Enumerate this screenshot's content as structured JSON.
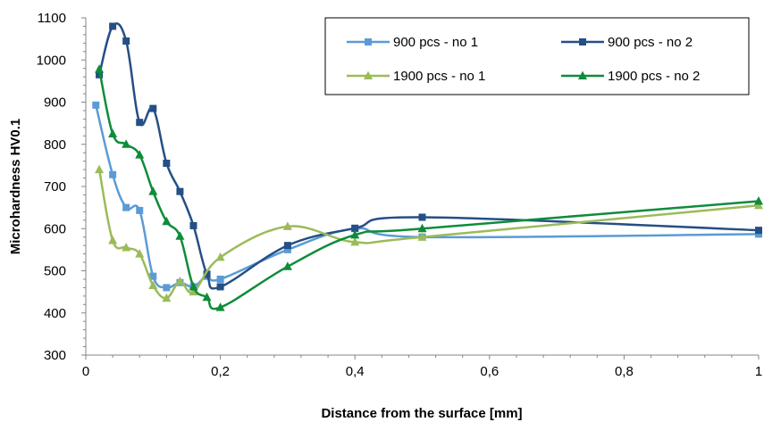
{
  "chart_data": {
    "type": "line",
    "title": "",
    "xlabel": "Distance from the surface [mm]",
    "ylabel": "Microhardness HV0.1",
    "xlim": [
      0,
      1
    ],
    "ylim": [
      300,
      1100
    ],
    "xticks": [
      0,
      0.2,
      0.4,
      0.6,
      0.8,
      1
    ],
    "xtick_labels": [
      "0",
      "0,2",
      "0,4",
      "0,6",
      "0,8",
      "1"
    ],
    "yticks": [
      300,
      400,
      500,
      600,
      700,
      800,
      900,
      1000,
      1100
    ],
    "ytick_labels": [
      "300",
      "400",
      "500",
      "600",
      "700",
      "800",
      "900",
      "1000",
      "1100"
    ],
    "grid": false,
    "legend_position": "top-right",
    "series": [
      {
        "name": "900 pcs - no 1",
        "color": "#5b9bd5",
        "marker": "square",
        "x": [
          0.015,
          0.04,
          0.06,
          0.08,
          0.1,
          0.12,
          0.14,
          0.16,
          0.18,
          0.2,
          0.3,
          0.4,
          0.5,
          1.0
        ],
        "y": [
          893,
          728,
          650,
          643,
          487,
          460,
          472,
          462,
          487,
          480,
          550,
          600,
          580,
          587
        ]
      },
      {
        "name": "900 pcs - no 2",
        "color": "#254f85",
        "marker": "square",
        "x": [
          0.02,
          0.04,
          0.06,
          0.08,
          0.1,
          0.12,
          0.14,
          0.16,
          0.18,
          0.2,
          0.3,
          0.4,
          0.5,
          1.0
        ],
        "y": [
          965,
          1080,
          1045,
          852,
          885,
          755,
          688,
          607,
          492,
          462,
          560,
          601,
          627,
          596
        ]
      },
      {
        "name": "1900 pcs - no 1",
        "color": "#9bbb59",
        "marker": "triangle",
        "x": [
          0.02,
          0.04,
          0.06,
          0.08,
          0.1,
          0.12,
          0.14,
          0.16,
          0.2,
          0.3,
          0.4,
          0.5,
          1.0
        ],
        "y": [
          740,
          572,
          555,
          540,
          465,
          435,
          475,
          450,
          532,
          605,
          568,
          580,
          655
        ]
      },
      {
        "name": "1900 pcs - no 2",
        "color": "#0e8c3a",
        "marker": "triangle",
        "x": [
          0.02,
          0.04,
          0.06,
          0.08,
          0.1,
          0.12,
          0.14,
          0.16,
          0.18,
          0.2,
          0.3,
          0.4,
          0.5,
          1.0
        ],
        "y": [
          978,
          825,
          800,
          775,
          688,
          617,
          582,
          462,
          437,
          413,
          510,
          585,
          600,
          665
        ]
      }
    ]
  }
}
